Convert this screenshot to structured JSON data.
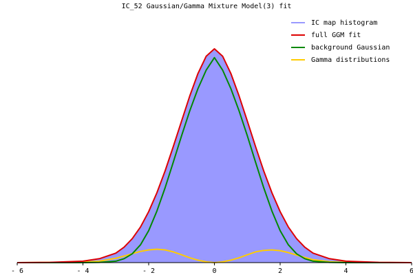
{
  "chart_data": {
    "type": "area",
    "title": "IC_52 Gaussian/Gamma Mixture Model(3) fit",
    "xlabel": "",
    "ylabel": "",
    "xlim": [
      -6,
      6
    ],
    "xticks": [
      -6,
      -4,
      -2,
      0,
      2,
      4,
      6
    ],
    "xtick_labels": [
      "- 6",
      "- 4",
      "- 2",
      "0",
      "2",
      "4",
      "6"
    ],
    "grid": false,
    "legend_position": "top-right",
    "series": [
      {
        "name": "IC map histogram",
        "kind": "histogram",
        "color": "#9999ff",
        "x": [
          -6.0,
          -5.0,
          -4.0,
          -3.5,
          -3.0,
          -2.75,
          -2.5,
          -2.25,
          -2.0,
          -1.75,
          -1.5,
          -1.25,
          -1.0,
          -0.75,
          -0.5,
          -0.25,
          0.0,
          0.25,
          0.5,
          0.75,
          1.0,
          1.25,
          1.5,
          1.75,
          2.0,
          2.25,
          2.5,
          2.75,
          3.0,
          3.5,
          4.0,
          5.0,
          6.0
        ],
        "y": [
          0.0,
          0.001,
          0.006,
          0.016,
          0.039,
          0.063,
          0.098,
          0.146,
          0.209,
          0.286,
          0.376,
          0.476,
          0.58,
          0.683,
          0.775,
          0.846,
          0.876,
          0.846,
          0.775,
          0.683,
          0.58,
          0.476,
          0.376,
          0.286,
          0.209,
          0.146,
          0.098,
          0.063,
          0.039,
          0.016,
          0.006,
          0.001,
          0.0
        ]
      },
      {
        "name": "full GGM fit",
        "color": "#dd0000",
        "x": [
          -6.0,
          -5.0,
          -4.0,
          -3.5,
          -3.0,
          -2.75,
          -2.5,
          -2.25,
          -2.0,
          -1.75,
          -1.5,
          -1.25,
          -1.0,
          -0.75,
          -0.5,
          -0.25,
          0.0,
          0.25,
          0.5,
          0.75,
          1.0,
          1.25,
          1.5,
          1.75,
          2.0,
          2.25,
          2.5,
          2.75,
          3.0,
          3.5,
          4.0,
          5.0,
          6.0
        ],
        "y": [
          0.0,
          0.001,
          0.006,
          0.016,
          0.039,
          0.063,
          0.098,
          0.146,
          0.209,
          0.286,
          0.376,
          0.476,
          0.58,
          0.683,
          0.775,
          0.846,
          0.876,
          0.846,
          0.775,
          0.683,
          0.58,
          0.476,
          0.376,
          0.286,
          0.209,
          0.146,
          0.098,
          0.063,
          0.039,
          0.016,
          0.006,
          0.001,
          0.0
        ]
      },
      {
        "name": "background Gaussian",
        "color": "#008800",
        "x": [
          -6.0,
          -5.0,
          -4.0,
          -3.5,
          -3.0,
          -2.75,
          -2.5,
          -2.25,
          -2.0,
          -1.75,
          -1.5,
          -1.25,
          -1.0,
          -0.75,
          -0.5,
          -0.25,
          0.0,
          0.25,
          0.5,
          0.75,
          1.0,
          1.25,
          1.5,
          1.75,
          2.0,
          2.25,
          2.5,
          2.75,
          3.0,
          3.5,
          4.0,
          5.0,
          6.0
        ],
        "y": [
          0.0,
          0.0,
          0.0,
          0.001,
          0.006,
          0.016,
          0.036,
          0.073,
          0.131,
          0.211,
          0.307,
          0.412,
          0.52,
          0.622,
          0.713,
          0.789,
          0.84,
          0.789,
          0.713,
          0.622,
          0.52,
          0.412,
          0.307,
          0.211,
          0.131,
          0.073,
          0.036,
          0.016,
          0.006,
          0.001,
          0.0,
          0.0,
          0.0
        ]
      },
      {
        "name": "Gamma distributions",
        "color": "#ffcc00",
        "x": [
          -6.0,
          -4.0,
          -3.5,
          -3.0,
          -2.75,
          -2.5,
          -2.25,
          -2.0,
          -1.75,
          -1.5,
          -1.25,
          -1.0,
          -0.75,
          -0.5,
          -0.25,
          0.0,
          0.25,
          0.5,
          0.75,
          1.0,
          1.25,
          1.5,
          1.75,
          2.0,
          2.25,
          2.5,
          2.75,
          3.0,
          3.5,
          4.0,
          6.0
        ],
        "y": [
          0.0,
          0.002,
          0.006,
          0.018,
          0.027,
          0.037,
          0.046,
          0.052,
          0.055,
          0.052,
          0.044,
          0.032,
          0.02,
          0.01,
          0.003,
          0.0,
          0.003,
          0.01,
          0.02,
          0.032,
          0.044,
          0.05,
          0.052,
          0.049,
          0.041,
          0.031,
          0.021,
          0.012,
          0.004,
          0.001,
          0.0
        ]
      }
    ]
  }
}
